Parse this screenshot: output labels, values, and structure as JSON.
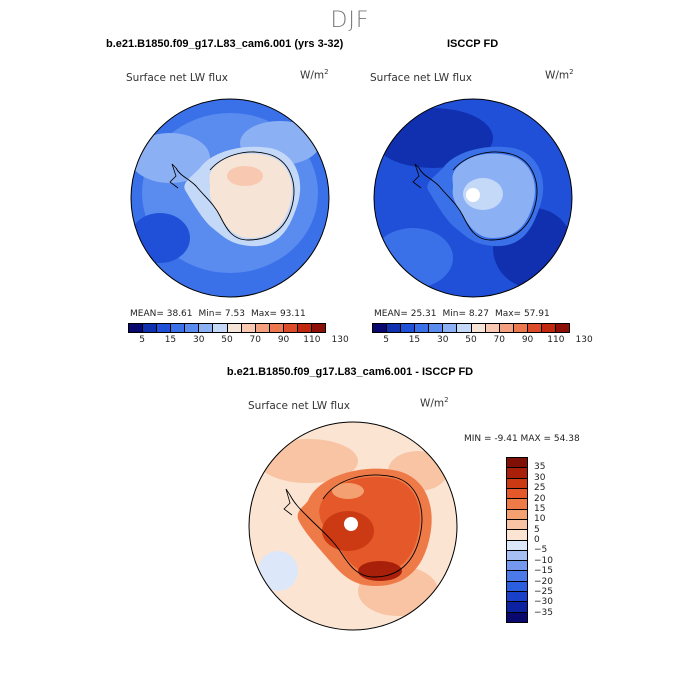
{
  "season": "DJF",
  "panels": {
    "model": {
      "title": "b.e21.B1850.f09_g17.L83_cam6.001 (yrs 3-32)",
      "variable": "Surface net LW flux",
      "units_base": "W/m",
      "units_exp": "2",
      "stats": {
        "mean": "MEAN=   38.61",
        "min": "Min=    7.53",
        "max": "Max=   93.11"
      }
    },
    "obs": {
      "title": "ISCCP FD",
      "variable": "Surface net LW flux",
      "units_base": "W/m",
      "units_exp": "2",
      "stats": {
        "mean": "MEAN=   25.31",
        "min": "Min=    8.27",
        "max": "Max=   57.91"
      }
    },
    "diff": {
      "title": "b.e21.B1850.f09_g17.L83_cam6.001 - ISCCP FD",
      "variable": "Surface net LW flux",
      "units_base": "W/m",
      "units_exp": "2",
      "minmax": "MIN =   -9.41  MAX =   54.38"
    }
  },
  "colors": {
    "abs_levels": [
      "#08086e",
      "#1030b0",
      "#2050d8",
      "#3a70e8",
      "#5a8cf0",
      "#8cb0f4",
      "#c4d8f8",
      "#f6e4d6",
      "#f8c8b0",
      "#f4a080",
      "#ec7850",
      "#dc4c28",
      "#c02810",
      "#8c1008"
    ],
    "diff_levels": [
      "#08086e",
      "#0c22a0",
      "#1840c8",
      "#2c5ee0",
      "#4a7ae8",
      "#7498ee",
      "#a6c0f4",
      "#dce8fa",
      "#fbe4d2",
      "#f8c4a4",
      "#f4a070",
      "#ee7a48",
      "#e4582a",
      "#cc3a14",
      "#a8200a",
      "#801006"
    ],
    "land": "#000000"
  },
  "chart_data": [
    {
      "type": "heatmap",
      "projection": "south-polar-stereographic",
      "title": "b.e21.B1850.f09_g17.L83_cam6.001 (yrs 3-32)",
      "variable": "Surface net LW flux",
      "units": "W/m2",
      "mean": 38.61,
      "min": 7.53,
      "max": 93.11,
      "colorbar_levels": [
        5,
        15,
        30,
        50,
        70,
        90,
        110,
        130
      ]
    },
    {
      "type": "heatmap",
      "projection": "south-polar-stereographic",
      "title": "ISCCP FD",
      "variable": "Surface net LW flux",
      "units": "W/m2",
      "mean": 25.31,
      "min": 8.27,
      "max": 57.91,
      "colorbar_levels": [
        5,
        15,
        30,
        50,
        70,
        90,
        110,
        130
      ]
    },
    {
      "type": "heatmap",
      "projection": "south-polar-stereographic",
      "title": "b.e21.B1850.f09_g17.L83_cam6.001 - ISCCP FD",
      "variable": "Surface net LW flux",
      "units": "W/m2",
      "min": -9.41,
      "max": 54.38,
      "colorbar_levels": [
        35,
        30,
        25,
        20,
        15,
        10,
        5,
        0,
        -5,
        -10,
        -15,
        -20,
        -25,
        -30,
        -35
      ]
    }
  ]
}
